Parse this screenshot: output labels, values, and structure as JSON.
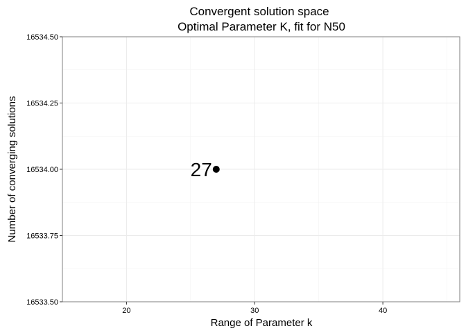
{
  "chart_data": {
    "type": "scatter",
    "title": "Convergent solution space",
    "subtitle": "Optimal Parameter K, fit for N50",
    "xlabel": "Range of Parameter k",
    "ylabel": "Number of converging solutions",
    "xlim": [
      15,
      46
    ],
    "ylim": [
      16533.5,
      16534.5
    ],
    "x_ticks": [
      20,
      30,
      40
    ],
    "x_tick_labels": [
      "20",
      "30",
      "40"
    ],
    "x_minor_ticks": [
      15,
      25,
      35,
      45
    ],
    "y_ticks": [
      16533.5,
      16533.75,
      16534.0,
      16534.25,
      16534.5
    ],
    "y_tick_labels": [
      "16533.50",
      "16533.75",
      "16534.00",
      "16534.25",
      "16534.50"
    ],
    "grid": true,
    "legend": "none",
    "colors": {
      "point": "#000000",
      "grid": "#ebebeb",
      "panel_border": "#7f7f7f"
    },
    "points": [
      {
        "x": 27,
        "y": 16534.0,
        "label": "27"
      }
    ]
  }
}
